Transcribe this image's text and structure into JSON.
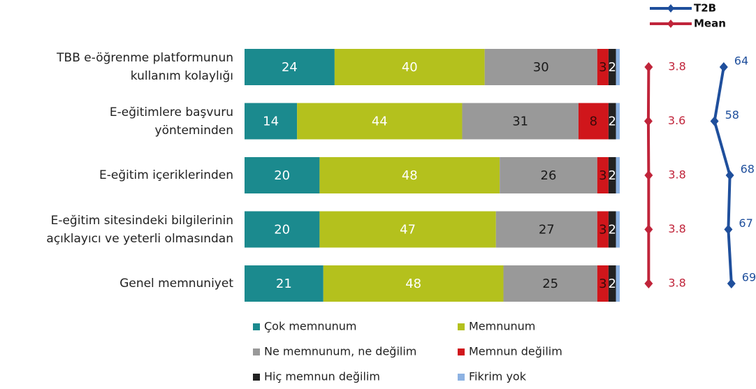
{
  "chart_data": {
    "type": "bar",
    "orientation": "horizontal",
    "stacked": true,
    "categories": [
      "TBB e-öğrenme platformunun\nkullanım kolaylığı",
      "E-eğitimlere başvuru\nyönteminden",
      "E-eğitim içeriklerinden",
      "E-eğitim sitesindeki bilgilerinin\naçıklayıcı ve yeterli olmasından",
      "Genel memnuniyet"
    ],
    "xlim": [
      0,
      100
    ],
    "series": [
      {
        "name": "Çok memnunum",
        "color": "#1b8a8e",
        "label_color": "#ffffff",
        "values": [
          24,
          14,
          20,
          20,
          21
        ]
      },
      {
        "name": "Memnunum",
        "color": "#b4c11d",
        "label_color": "#ffffff",
        "values": [
          40,
          44,
          48,
          47,
          48
        ]
      },
      {
        "name": "Ne memnunum, ne değilim",
        "color": "#999999",
        "label_color": "#1a1a1a",
        "values": [
          30,
          31,
          26,
          27,
          25
        ]
      },
      {
        "name": "Memnun değilim",
        "color": "#d0161b",
        "label_color": "#3a0a0a",
        "values": [
          3,
          8,
          3,
          3,
          3
        ]
      },
      {
        "name": "Hiç memnun değilim",
        "color": "#222222",
        "label_color": "#ffffff",
        "values": [
          2,
          2,
          2,
          2,
          2
        ]
      },
      {
        "name": "Fikrim yok",
        "color": "#8db2e2",
        "label_color": "#1a1a1a",
        "show_labels": false,
        "values": [
          1,
          1,
          1,
          1,
          1
        ]
      }
    ],
    "lines": [
      {
        "name": "T2B",
        "color": "#1f4f9c",
        "xlim": [
          0,
          100
        ],
        "values": [
          64,
          58,
          68,
          67,
          69
        ]
      },
      {
        "name": "Mean",
        "color": "#c0243a",
        "xlim": [
          0,
          100
        ],
        "values": [
          3.8,
          3.6,
          3.8,
          3.8,
          3.8
        ]
      }
    ]
  }
}
